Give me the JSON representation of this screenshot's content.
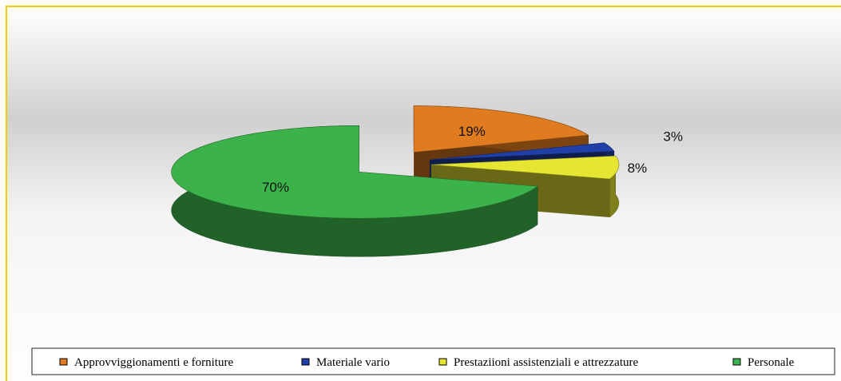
{
  "chart_data": {
    "type": "pie",
    "categories": [
      "Approvviggionamenti e forniture",
      "Materiale vario",
      "Prestaziioni assistenziali e attrezzature",
      "Personale"
    ],
    "values": [
      19,
      3,
      8,
      70
    ],
    "value_labels": [
      "19%",
      "3%",
      "8%",
      "70%"
    ],
    "colors": [
      "#e07b1f",
      "#2040a8",
      "#e6e632",
      "#3cb34a"
    ],
    "legend": "bottom"
  }
}
